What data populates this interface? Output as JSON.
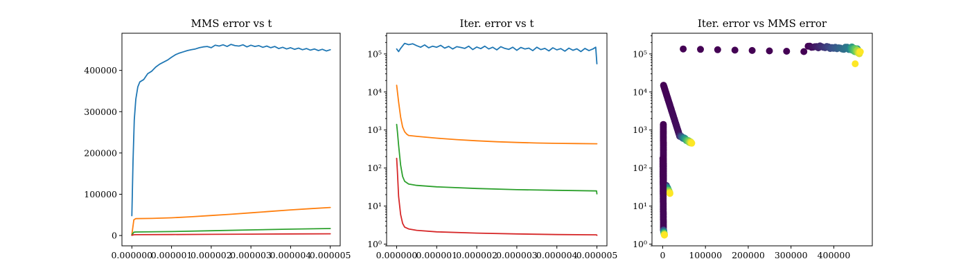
{
  "chart_data": [
    {
      "type": "line",
      "title": "MMS error vs t",
      "xlabel": "",
      "ylabel": "",
      "xlim": [
        -2.5e-07,
        5.25e-06
      ],
      "ylim": [
        -25000,
        490000
      ],
      "yscale": "linear",
      "grid": false,
      "x_ticks": [
        {
          "value": 0,
          "label": "0.000000"
        },
        {
          "value": 1e-06,
          "label": "0.000001"
        },
        {
          "value": 2e-06,
          "label": "0.000002"
        },
        {
          "value": 3e-06,
          "label": "0.000003"
        },
        {
          "value": 4e-06,
          "label": "0.000004"
        },
        {
          "value": 5e-06,
          "label": "0.000005"
        }
      ],
      "y_ticks": [
        {
          "value": 0,
          "label": "0"
        },
        {
          "value": 100000,
          "label": "100000"
        },
        {
          "value": 200000,
          "label": "200000"
        },
        {
          "value": 300000,
          "label": "300000"
        },
        {
          "value": 400000,
          "label": "400000"
        }
      ],
      "series": [
        {
          "color": "#1f77b4",
          "x": [
            0,
            3e-08,
            6e-08,
            1e-07,
            1.5e-07,
            2e-07,
            3e-07,
            4e-07,
            5e-07,
            6e-07,
            7e-07,
            8e-07,
            9e-07,
            1e-06,
            1.1e-06,
            1.2e-06,
            1.3e-06,
            1.4e-06,
            1.5e-06,
            1.6e-06,
            1.7e-06,
            1.8e-06,
            1.9e-06,
            2e-06,
            2.1e-06,
            2.2e-06,
            2.3e-06,
            2.4e-06,
            2.5e-06,
            2.6e-06,
            2.7e-06,
            2.8e-06,
            2.9e-06,
            3e-06,
            3.1e-06,
            3.2e-06,
            3.3e-06,
            3.4e-06,
            3.5e-06,
            3.6e-06,
            3.7e-06,
            3.8e-06,
            3.9e-06,
            4e-06,
            4.1e-06,
            4.2e-06,
            4.3e-06,
            4.4e-06,
            4.5e-06,
            4.6e-06,
            4.7e-06,
            4.8e-06,
            4.9e-06,
            5e-06
          ],
          "y": [
            48000,
            180000,
            280000,
            330000,
            360000,
            372000,
            378000,
            392000,
            398000,
            408000,
            415000,
            420000,
            425000,
            432000,
            438000,
            442000,
            445000,
            448000,
            450000,
            452000,
            455000,
            457000,
            458000,
            455000,
            461000,
            459000,
            462000,
            458000,
            463000,
            460000,
            459000,
            462000,
            457000,
            461000,
            458000,
            460000,
            456000,
            459000,
            455000,
            458000,
            453000,
            456000,
            452000,
            455000,
            451000,
            454000,
            450000,
            453000,
            449000,
            452000,
            448000,
            451000,
            447000,
            450000
          ]
        },
        {
          "color": "#ff7f0e",
          "x": [
            0,
            5e-08,
            1e-07,
            5e-07,
            1e-06,
            1.5e-06,
            2e-06,
            2.5e-06,
            3e-06,
            3.5e-06,
            4e-06,
            4.5e-06,
            5e-06
          ],
          "y": [
            2000,
            38000,
            41000,
            41500,
            43000,
            45500,
            48500,
            51500,
            55000,
            58500,
            62000,
            65000,
            68000
          ]
        },
        {
          "color": "#2ca02c",
          "x": [
            0,
            5e-08,
            1e-07,
            1e-06,
            2e-06,
            3e-06,
            4e-06,
            5e-06
          ],
          "y": [
            1500,
            8000,
            8500,
            9500,
            11500,
            13500,
            15500,
            17000
          ]
        },
        {
          "color": "#d62728",
          "x": [
            0,
            5e-08,
            1e-07,
            1e-06,
            2e-06,
            3e-06,
            4e-06,
            5e-06
          ],
          "y": [
            500,
            1800,
            2000,
            2300,
            2800,
            3300,
            3800,
            4200
          ]
        }
      ]
    },
    {
      "type": "line",
      "title": "Iter. error vs t",
      "xlabel": "",
      "ylabel": "",
      "xlim": [
        -2.5e-07,
        5.25e-06
      ],
      "ylim": [
        0.9,
        350000
      ],
      "yscale": "log",
      "grid": false,
      "x_ticks": [
        {
          "value": 0,
          "label": "0.000000"
        },
        {
          "value": 1e-06,
          "label": "0.000001"
        },
        {
          "value": 2e-06,
          "label": "0.000002"
        },
        {
          "value": 3e-06,
          "label": "0.000003"
        },
        {
          "value": 4e-06,
          "label": "0.000004"
        },
        {
          "value": 5e-06,
          "label": "0.000005"
        }
      ],
      "y_ticks": [
        {
          "value": 1,
          "label": "10⁰"
        },
        {
          "value": 10,
          "label": "10¹"
        },
        {
          "value": 100,
          "label": "10²"
        },
        {
          "value": 1000,
          "label": "10³"
        },
        {
          "value": 10000,
          "label": "10⁴"
        },
        {
          "value": 100000,
          "label": "10⁵"
        }
      ],
      "series": [
        {
          "color": "#1f77b4",
          "x": [
            0,
            5e-08,
            1e-07,
            2e-07,
            3e-07,
            4e-07,
            5e-07,
            6e-07,
            7e-07,
            8e-07,
            9e-07,
            1e-06,
            1.1e-06,
            1.2e-06,
            1.3e-06,
            1.4e-06,
            1.5e-06,
            1.6e-06,
            1.7e-06,
            1.8e-06,
            1.9e-06,
            2e-06,
            2.1e-06,
            2.2e-06,
            2.3e-06,
            2.4e-06,
            2.5e-06,
            2.6e-06,
            2.7e-06,
            2.8e-06,
            2.9e-06,
            3e-06,
            3.1e-06,
            3.2e-06,
            3.3e-06,
            3.4e-06,
            3.5e-06,
            3.6e-06,
            3.7e-06,
            3.8e-06,
            3.9e-06,
            4e-06,
            4.1e-06,
            4.2e-06,
            4.3e-06,
            4.4e-06,
            4.5e-06,
            4.6e-06,
            4.7e-06,
            4.8e-06,
            4.9e-06,
            4.97e-06,
            5e-06
          ],
          "y": [
            135000,
            115000,
            140000,
            190000,
            175000,
            185000,
            165000,
            150000,
            172000,
            145000,
            160000,
            150000,
            168000,
            142000,
            158000,
            135000,
            155000,
            148000,
            140000,
            160000,
            130000,
            152000,
            138000,
            160000,
            135000,
            150000,
            128000,
            155000,
            140000,
            132000,
            150000,
            125000,
            148000,
            135000,
            142000,
            122000,
            150000,
            130000,
            140000,
            120000,
            145000,
            128000,
            138000,
            118000,
            142000,
            125000,
            136000,
            115000,
            140000,
            122000,
            135000,
            150000,
            55000
          ]
        },
        {
          "color": "#ff7f0e",
          "x": [
            0,
            5e-08,
            1e-07,
            1.5e-07,
            2e-07,
            2.5e-07,
            3e-07,
            5e-07,
            1e-06,
            1.5e-06,
            2e-06,
            2.5e-06,
            3e-06,
            3.5e-06,
            4e-06,
            4.5e-06,
            5e-06
          ],
          "y": [
            15000,
            5500,
            2200,
            1200,
            900,
            780,
            720,
            680,
            610,
            560,
            520,
            490,
            470,
            455,
            445,
            440,
            435
          ]
        },
        {
          "color": "#2ca02c",
          "x": [
            0,
            2e-08,
            5e-08,
            1e-07,
            1.5e-07,
            2e-07,
            3e-07,
            5e-07,
            1e-06,
            2e-06,
            3e-06,
            4e-06,
            4.99e-06,
            5e-06
          ],
          "y": [
            1400,
            900,
            400,
            120,
            60,
            45,
            38,
            35,
            32,
            29,
            27,
            26,
            25,
            21
          ]
        },
        {
          "color": "#d62728",
          "x": [
            0,
            2e-08,
            5e-08,
            1e-07,
            1.5e-07,
            2e-07,
            3e-07,
            5e-07,
            1e-06,
            2e-06,
            3e-06,
            4e-06,
            4.99e-06,
            5e-06
          ],
          "y": [
            180,
            80,
            18,
            6,
            3.5,
            2.8,
            2.5,
            2.3,
            2.1,
            1.95,
            1.85,
            1.78,
            1.75,
            1.7
          ]
        }
      ]
    },
    {
      "type": "scatter",
      "title": "Iter. error vs MMS error",
      "xlabel": "",
      "ylabel": "",
      "xlim": [
        -25000,
        490000
      ],
      "ylim": [
        0.9,
        350000
      ],
      "yscale": "log",
      "grid": false,
      "colormap": [
        "#440154",
        "#3b528b",
        "#21918c",
        "#5ec962",
        "#fde725"
      ],
      "x_ticks": [
        {
          "value": 0,
          "label": "0"
        },
        {
          "value": 100000,
          "label": "100000"
        },
        {
          "value": 200000,
          "label": "200000"
        },
        {
          "value": 300000,
          "label": "300000"
        },
        {
          "value": 400000,
          "label": "400000"
        }
      ],
      "y_ticks": [
        {
          "value": 1,
          "label": "10⁰"
        },
        {
          "value": 10,
          "label": "10¹"
        },
        {
          "value": 100,
          "label": "10²"
        },
        {
          "value": 1000,
          "label": "10³"
        },
        {
          "value": 10000,
          "label": "10⁴"
        },
        {
          "value": 100000,
          "label": "10⁵"
        }
      ],
      "groups": [
        {
          "x_start": 48000,
          "x_end": 330000,
          "y_start": 135000,
          "y_end": 115000,
          "c_start": 0.0,
          "c_end": 0.0,
          "count": 8,
          "jitter": 0
        },
        {
          "x_start": 340000,
          "x_end": 455000,
          "y_start": 160000,
          "y_end": 135000,
          "c_start": 0.0,
          "c_end": 0.5,
          "count": 30,
          "jitter": 0.08
        },
        {
          "x_start": 440000,
          "x_end": 462000,
          "y_start": 140000,
          "y_end": 110000,
          "c_start": 0.5,
          "c_end": 1.0,
          "count": 30,
          "jitter": 0.12
        },
        {
          "x_start": 450000,
          "x_end": 450000,
          "y_start": 55000,
          "y_end": 55000,
          "c_start": 1.0,
          "c_end": 1.0,
          "count": 1,
          "jitter": 0
        },
        {
          "x_start": 2000,
          "x_end": 40000,
          "y_start": 15000,
          "y_end": 680,
          "c_start": 0.0,
          "c_end": 0.05,
          "count": 70,
          "jitter": 0
        },
        {
          "x_start": 40000,
          "x_end": 68000,
          "y_start": 700,
          "y_end": 450,
          "c_start": 0.1,
          "c_end": 1.0,
          "count": 40,
          "jitter": 0.04
        },
        {
          "x_start": 1500,
          "x_end": 2000,
          "y_start": 1400,
          "y_end": 30,
          "c_start": 0.0,
          "c_end": 0.02,
          "count": 40,
          "jitter": 0
        },
        {
          "x_start": 8000,
          "x_end": 17000,
          "y_start": 35,
          "y_end": 22,
          "c_start": 0.1,
          "c_end": 1.0,
          "count": 25,
          "jitter": 0.03
        },
        {
          "x_start": 500,
          "x_end": 1800,
          "y_start": 180,
          "y_end": 2.5,
          "c_start": 0.0,
          "c_end": 0.02,
          "count": 45,
          "jitter": 0
        },
        {
          "x_start": 1800,
          "x_end": 4200,
          "y_start": 2.4,
          "y_end": 1.7,
          "c_start": 0.1,
          "c_end": 1.0,
          "count": 20,
          "jitter": 0.03
        }
      ]
    }
  ]
}
